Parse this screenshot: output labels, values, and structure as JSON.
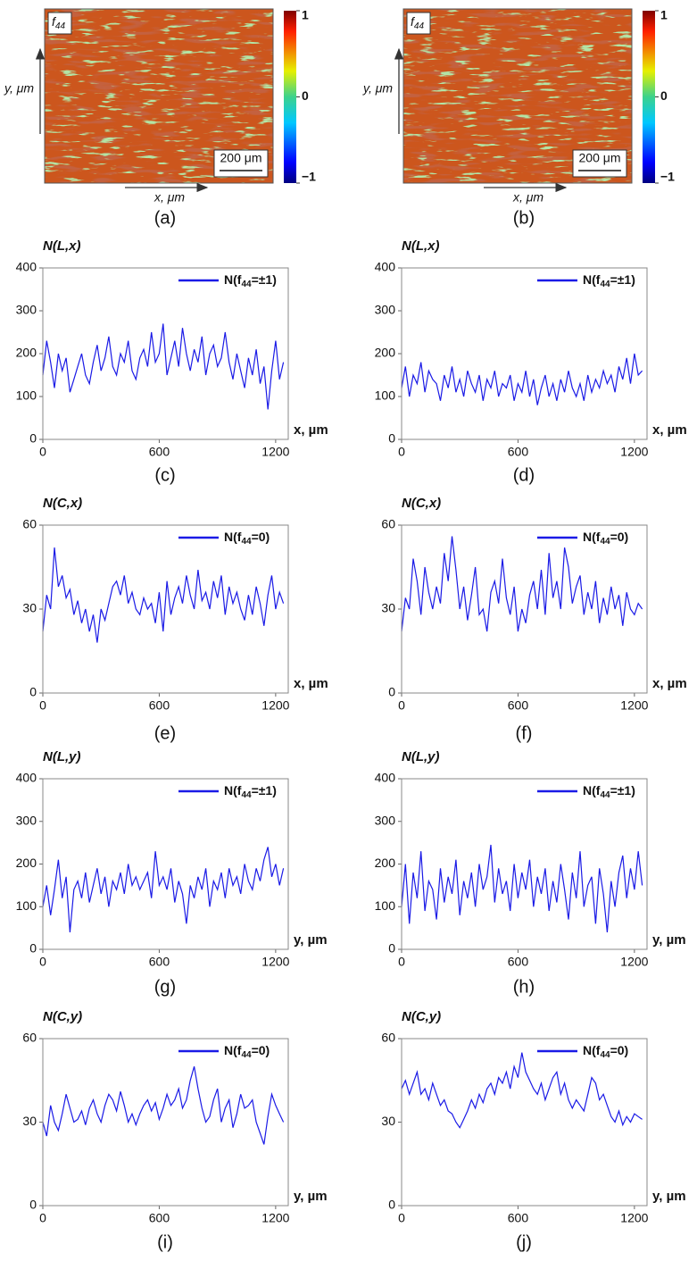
{
  "chart_data": [
    {
      "type": "heatmap",
      "label": "(a)",
      "badge": "f44",
      "xlabel": "x, μm",
      "ylabel": "y, μm",
      "scale_bar": "200 μm",
      "clim": [
        -1,
        1
      ],
      "cticks": [
        1,
        0,
        {
          "value": -1,
          "label": "−1"
        }
      ]
    },
    {
      "type": "heatmap",
      "label": "(b)",
      "badge": "f44",
      "xlabel": "x, μm",
      "ylabel": "y, μm",
      "scale_bar": "200 μm",
      "clim": [
        -1,
        1
      ],
      "cticks": [
        1,
        0,
        {
          "value": -1,
          "label": "−1"
        }
      ]
    },
    {
      "type": "line",
      "label": "(c)",
      "ylabel": "N(L,x)",
      "xlabel": "x, µm",
      "xlim": [
        0,
        1265
      ],
      "ylim": [
        0,
        400
      ],
      "xticks": [
        0,
        600,
        1200
      ],
      "yticks": [
        0,
        100,
        200,
        300,
        400
      ],
      "x": [
        0,
        20,
        40,
        60,
        80,
        100,
        120,
        140,
        160,
        180,
        200,
        220,
        240,
        260,
        280,
        300,
        320,
        340,
        360,
        380,
        400,
        420,
        440,
        460,
        480,
        500,
        520,
        540,
        560,
        580,
        600,
        620,
        640,
        660,
        680,
        700,
        720,
        740,
        760,
        780,
        800,
        820,
        840,
        860,
        880,
        900,
        920,
        940,
        960,
        980,
        1000,
        1020,
        1040,
        1060,
        1080,
        1100,
        1120,
        1140,
        1160,
        1180,
        1200,
        1220,
        1240
      ],
      "series": [
        {
          "name": "N(f44=±1)",
          "color": "#1a1ae6",
          "values": [
            150,
            230,
            180,
            120,
            200,
            160,
            190,
            110,
            140,
            170,
            200,
            150,
            130,
            180,
            220,
            160,
            190,
            240,
            170,
            150,
            200,
            180,
            230,
            160,
            140,
            190,
            210,
            170,
            250,
            180,
            200,
            270,
            150,
            190,
            230,
            170,
            260,
            200,
            160,
            210,
            180,
            240,
            150,
            200,
            220,
            170,
            190,
            250,
            180,
            140,
            200,
            160,
            120,
            190,
            150,
            210,
            130,
            170,
            70,
            160,
            230,
            140,
            180
          ]
        }
      ]
    },
    {
      "type": "line",
      "label": "(d)",
      "ylabel": "N(L,x)",
      "xlabel": "x, µm",
      "xlim": [
        0,
        1265
      ],
      "ylim": [
        0,
        400
      ],
      "xticks": [
        0,
        600,
        1200
      ],
      "yticks": [
        0,
        100,
        200,
        300,
        400
      ],
      "x": [
        0,
        20,
        40,
        60,
        80,
        100,
        120,
        140,
        160,
        180,
        200,
        220,
        240,
        260,
        280,
        300,
        320,
        340,
        360,
        380,
        400,
        420,
        440,
        460,
        480,
        500,
        520,
        540,
        560,
        580,
        600,
        620,
        640,
        660,
        680,
        700,
        720,
        740,
        760,
        780,
        800,
        820,
        840,
        860,
        880,
        900,
        920,
        940,
        960,
        980,
        1000,
        1020,
        1040,
        1060,
        1080,
        1100,
        1120,
        1140,
        1160,
        1180,
        1200,
        1220,
        1240
      ],
      "series": [
        {
          "name": "N(f44=±1)",
          "color": "#1a1ae6",
          "values": [
            120,
            170,
            100,
            150,
            130,
            180,
            110,
            160,
            140,
            130,
            90,
            150,
            120,
            170,
            110,
            140,
            100,
            160,
            130,
            110,
            150,
            90,
            140,
            120,
            160,
            100,
            130,
            120,
            150,
            90,
            130,
            110,
            160,
            100,
            140,
            80,
            120,
            150,
            100,
            130,
            90,
            140,
            110,
            160,
            120,
            100,
            130,
            90,
            150,
            110,
            140,
            120,
            160,
            130,
            150,
            110,
            170,
            140,
            190,
            130,
            200,
            150,
            160
          ]
        }
      ]
    },
    {
      "type": "line",
      "label": "(e)",
      "ylabel": "N(C,x)",
      "xlabel": "x, µm",
      "xlim": [
        0,
        1265
      ],
      "ylim": [
        0,
        60
      ],
      "xticks": [
        0,
        600,
        1200
      ],
      "yticks": [
        0,
        30,
        60
      ],
      "x": [
        0,
        20,
        40,
        60,
        80,
        100,
        120,
        140,
        160,
        180,
        200,
        220,
        240,
        260,
        280,
        300,
        320,
        340,
        360,
        380,
        400,
        420,
        440,
        460,
        480,
        500,
        520,
        540,
        560,
        580,
        600,
        620,
        640,
        660,
        680,
        700,
        720,
        740,
        760,
        780,
        800,
        820,
        840,
        860,
        880,
        900,
        920,
        940,
        960,
        980,
        1000,
        1020,
        1040,
        1060,
        1080,
        1100,
        1120,
        1140,
        1160,
        1180,
        1200,
        1220,
        1240
      ],
      "series": [
        {
          "name": "N(f44=0)",
          "color": "#1a1ae6",
          "values": [
            22,
            35,
            30,
            52,
            38,
            42,
            34,
            37,
            28,
            33,
            25,
            30,
            22,
            28,
            18,
            30,
            26,
            32,
            38,
            40,
            35,
            42,
            32,
            36,
            30,
            28,
            34,
            30,
            32,
            25,
            36,
            22,
            40,
            28,
            34,
            38,
            32,
            42,
            35,
            30,
            44,
            33,
            36,
            30,
            40,
            34,
            42,
            28,
            38,
            32,
            36,
            30,
            26,
            35,
            28,
            38,
            32,
            24,
            35,
            42,
            30,
            36,
            32
          ]
        }
      ]
    },
    {
      "type": "line",
      "label": "(f)",
      "ylabel": "N(C,x)",
      "xlabel": "x, µm",
      "xlim": [
        0,
        1265
      ],
      "ylim": [
        0,
        60
      ],
      "xticks": [
        0,
        600,
        1200
      ],
      "yticks": [
        0,
        30,
        60
      ],
      "x": [
        0,
        20,
        40,
        60,
        80,
        100,
        120,
        140,
        160,
        180,
        200,
        220,
        240,
        260,
        280,
        300,
        320,
        340,
        360,
        380,
        400,
        420,
        440,
        460,
        480,
        500,
        520,
        540,
        560,
        580,
        600,
        620,
        640,
        660,
        680,
        700,
        720,
        740,
        760,
        780,
        800,
        820,
        840,
        860,
        880,
        900,
        920,
        940,
        960,
        980,
        1000,
        1020,
        1040,
        1060,
        1080,
        1100,
        1120,
        1140,
        1160,
        1180,
        1200,
        1220,
        1240
      ],
      "series": [
        {
          "name": "N(f44=0)",
          "color": "#1a1ae6",
          "values": [
            22,
            34,
            30,
            48,
            40,
            28,
            45,
            36,
            30,
            38,
            32,
            50,
            40,
            56,
            44,
            30,
            38,
            26,
            35,
            45,
            28,
            30,
            22,
            36,
            40,
            32,
            48,
            34,
            28,
            38,
            22,
            30,
            25,
            35,
            40,
            30,
            44,
            28,
            50,
            34,
            40,
            30,
            52,
            45,
            32,
            38,
            42,
            28,
            36,
            30,
            40,
            25,
            34,
            28,
            38,
            30,
            35,
            24,
            36,
            30,
            28,
            32,
            30
          ]
        }
      ]
    },
    {
      "type": "line",
      "label": "(g)",
      "ylabel": "N(L,y)",
      "xlabel": "y, µm",
      "xlim": [
        0,
        1265
      ],
      "ylim": [
        0,
        400
      ],
      "xticks": [
        0,
        600,
        1200
      ],
      "yticks": [
        0,
        100,
        200,
        300,
        400
      ],
      "x": [
        0,
        20,
        40,
        60,
        80,
        100,
        120,
        140,
        160,
        180,
        200,
        220,
        240,
        260,
        280,
        300,
        320,
        340,
        360,
        380,
        400,
        420,
        440,
        460,
        480,
        500,
        520,
        540,
        560,
        580,
        600,
        620,
        640,
        660,
        680,
        700,
        720,
        740,
        760,
        780,
        800,
        820,
        840,
        860,
        880,
        900,
        920,
        940,
        960,
        980,
        1000,
        1020,
        1040,
        1060,
        1080,
        1100,
        1120,
        1140,
        1160,
        1180,
        1200,
        1220,
        1240
      ],
      "series": [
        {
          "name": "N(f44=±1)",
          "color": "#1a1ae6",
          "values": [
            100,
            150,
            80,
            140,
            210,
            120,
            170,
            40,
            140,
            160,
            120,
            180,
            110,
            150,
            190,
            130,
            170,
            100,
            160,
            140,
            180,
            130,
            200,
            150,
            170,
            140,
            160,
            180,
            120,
            230,
            150,
            170,
            140,
            190,
            110,
            160,
            130,
            60,
            150,
            120,
            170,
            140,
            190,
            100,
            160,
            140,
            180,
            120,
            190,
            150,
            170,
            130,
            200,
            160,
            140,
            190,
            160,
            210,
            240,
            170,
            200,
            150,
            190
          ]
        }
      ]
    },
    {
      "type": "line",
      "label": "(h)",
      "ylabel": "N(L,y)",
      "xlabel": "y, µm",
      "xlim": [
        0,
        1265
      ],
      "ylim": [
        0,
        400
      ],
      "xticks": [
        0,
        600,
        1200
      ],
      "yticks": [
        0,
        100,
        200,
        300,
        400
      ],
      "x": [
        0,
        20,
        40,
        60,
        80,
        100,
        120,
        140,
        160,
        180,
        200,
        220,
        240,
        260,
        280,
        300,
        320,
        340,
        360,
        380,
        400,
        420,
        440,
        460,
        480,
        500,
        520,
        540,
        560,
        580,
        600,
        620,
        640,
        660,
        680,
        700,
        720,
        740,
        760,
        780,
        800,
        820,
        840,
        860,
        880,
        900,
        920,
        940,
        960,
        980,
        1000,
        1020,
        1040,
        1060,
        1080,
        1100,
        1120,
        1140,
        1160,
        1180,
        1200,
        1220,
        1240
      ],
      "series": [
        {
          "name": "N(f44=±1)",
          "color": "#1a1ae6",
          "values": [
            100,
            200,
            60,
            180,
            120,
            230,
            90,
            160,
            140,
            70,
            190,
            110,
            170,
            130,
            210,
            80,
            160,
            120,
            180,
            100,
            200,
            140,
            170,
            245,
            110,
            190,
            130,
            160,
            90,
            200,
            120,
            180,
            140,
            210,
            100,
            170,
            130,
            190,
            90,
            160,
            110,
            200,
            140,
            70,
            180,
            120,
            230,
            100,
            150,
            170,
            60,
            190,
            130,
            40,
            160,
            100,
            180,
            220,
            120,
            190,
            140,
            230,
            150
          ]
        }
      ]
    },
    {
      "type": "line",
      "label": "(i)",
      "ylabel": "N(C,y)",
      "xlabel": "y, µm",
      "xlim": [
        0,
        1265
      ],
      "ylim": [
        0,
        60
      ],
      "xticks": [
        0,
        600,
        1200
      ],
      "yticks": [
        0,
        30,
        60
      ],
      "x": [
        0,
        20,
        40,
        60,
        80,
        100,
        120,
        140,
        160,
        180,
        200,
        220,
        240,
        260,
        280,
        300,
        320,
        340,
        360,
        380,
        400,
        420,
        440,
        460,
        480,
        500,
        520,
        540,
        560,
        580,
        600,
        620,
        640,
        660,
        680,
        700,
        720,
        740,
        760,
        780,
        800,
        820,
        840,
        860,
        880,
        900,
        920,
        940,
        960,
        980,
        1000,
        1020,
        1040,
        1060,
        1080,
        1100,
        1120,
        1140,
        1160,
        1180,
        1200,
        1220,
        1240
      ],
      "series": [
        {
          "name": "N(f44=0)",
          "color": "#1a1ae6",
          "values": [
            30,
            25,
            36,
            30,
            27,
            33,
            40,
            35,
            30,
            31,
            34,
            29,
            35,
            38,
            33,
            30,
            36,
            40,
            38,
            34,
            41,
            36,
            30,
            33,
            29,
            33,
            36,
            38,
            34,
            37,
            31,
            35,
            40,
            36,
            38,
            42,
            35,
            38,
            45,
            50,
            42,
            35,
            30,
            32,
            38,
            42,
            30,
            35,
            38,
            28,
            33,
            40,
            35,
            36,
            38,
            30,
            26,
            22,
            32,
            40,
            36,
            33,
            30
          ]
        }
      ]
    },
    {
      "type": "line",
      "label": "(j)",
      "ylabel": "N(C,y)",
      "xlabel": "y, µm",
      "xlim": [
        0,
        1265
      ],
      "ylim": [
        0,
        60
      ],
      "xticks": [
        0,
        600,
        1200
      ],
      "yticks": [
        0,
        30,
        60
      ],
      "x": [
        0,
        20,
        40,
        60,
        80,
        100,
        120,
        140,
        160,
        180,
        200,
        220,
        240,
        260,
        280,
        300,
        320,
        340,
        360,
        380,
        400,
        420,
        440,
        460,
        480,
        500,
        520,
        540,
        560,
        580,
        600,
        620,
        640,
        660,
        680,
        700,
        720,
        740,
        760,
        780,
        800,
        820,
        840,
        860,
        880,
        900,
        920,
        940,
        960,
        980,
        1000,
        1020,
        1040,
        1060,
        1080,
        1100,
        1120,
        1140,
        1160,
        1180,
        1200,
        1220,
        1240
      ],
      "series": [
        {
          "name": "N(f44=0)",
          "color": "#1a1ae6",
          "values": [
            42,
            45,
            40,
            44,
            48,
            40,
            42,
            38,
            44,
            40,
            36,
            38,
            34,
            33,
            30,
            28,
            31,
            34,
            38,
            35,
            40,
            37,
            42,
            44,
            40,
            46,
            44,
            48,
            42,
            50,
            46,
            55,
            48,
            45,
            42,
            40,
            44,
            38,
            42,
            46,
            48,
            40,
            44,
            38,
            35,
            38,
            36,
            34,
            40,
            46,
            44,
            38,
            40,
            36,
            32,
            30,
            34,
            29,
            32,
            30,
            33,
            32,
            31
          ]
        }
      ]
    }
  ]
}
